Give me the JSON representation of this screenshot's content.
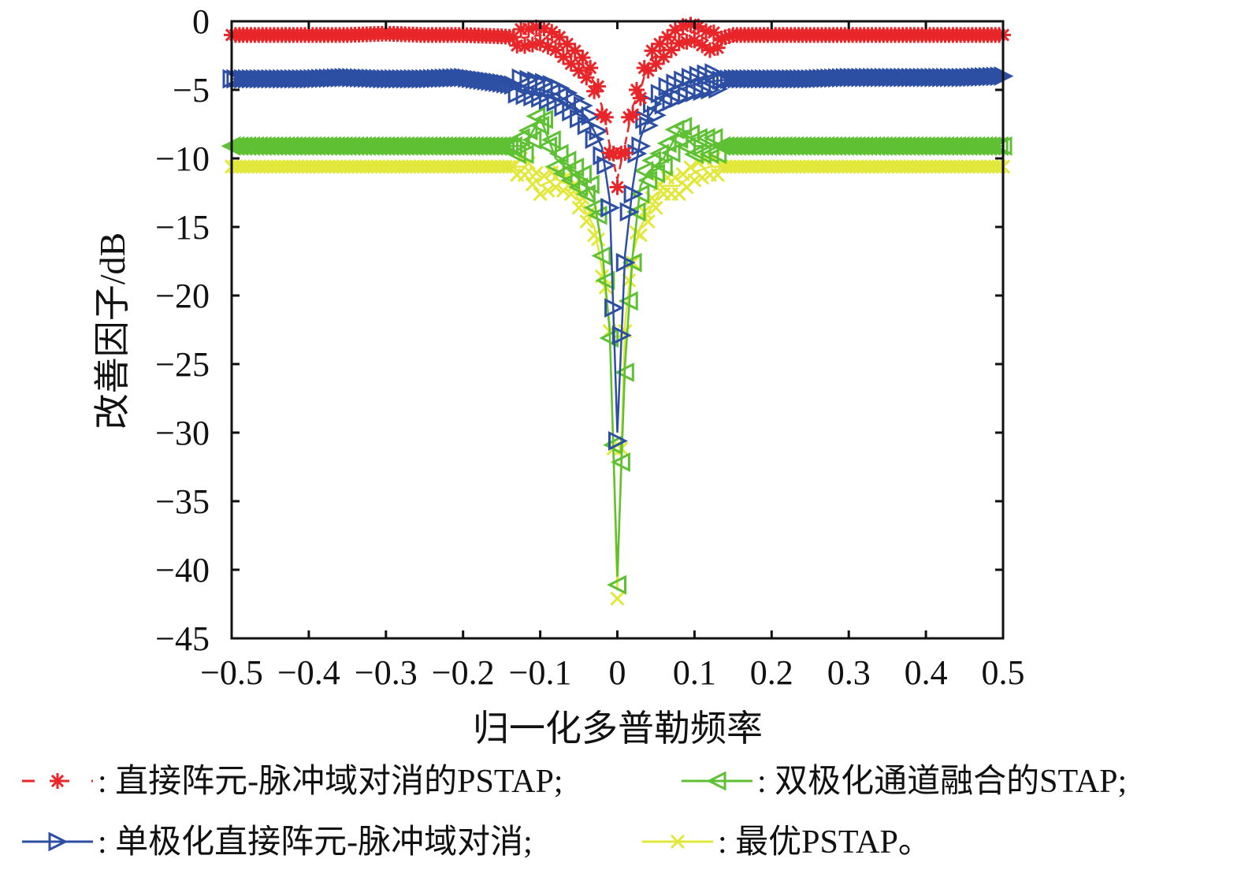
{
  "chart_data": {
    "type": "line",
    "title": "",
    "xlabel": "归一化多普勒频率",
    "ylabel": "改善因子/dB",
    "xlim": [
      -0.5,
      0.5
    ],
    "ylim": [
      -45,
      0
    ],
    "xticks": [
      -0.5,
      -0.4,
      -0.3,
      -0.2,
      -0.1,
      0,
      0.1,
      0.2,
      0.3,
      0.4,
      0.5
    ],
    "xtick_labels": [
      "−0.5",
      "−0.4",
      "−0.3",
      "−0.2",
      "−0.1",
      "0",
      "0.1",
      "0.2",
      "0.3",
      "0.4",
      "0.5"
    ],
    "yticks": [
      0,
      -5,
      -10,
      -15,
      -20,
      -25,
      -30,
      -35,
      -40,
      -45
    ],
    "ytick_labels": [
      "0",
      "−5",
      "−10",
      "−15",
      "−20",
      "−25",
      "−30",
      "−35",
      "−40",
      "−45"
    ],
    "grid": false,
    "legend_placement": "bottom",
    "x": [
      -0.5,
      -0.45,
      -0.4,
      -0.35,
      -0.3,
      -0.25,
      -0.2,
      -0.15,
      -0.12,
      -0.1,
      -0.08,
      -0.06,
      -0.04,
      -0.03,
      -0.02,
      -0.01,
      0,
      0.01,
      0.02,
      0.03,
      0.04,
      0.06,
      0.08,
      0.1,
      0.12,
      0.15,
      0.2,
      0.25,
      0.3,
      0.35,
      0.4,
      0.45,
      0.5
    ],
    "series": [
      {
        "name": "直接阵元-脉冲域对消的PSTAP;",
        "color": "#e8262a",
        "marker": "asterisk",
        "dash": true,
        "values": [
          -1.0,
          -1.0,
          -1.0,
          -1.0,
          -0.9,
          -1.0,
          -1.0,
          -1.1,
          -1.2,
          -1.0,
          -1.5,
          -2.5,
          -3.5,
          -4.5,
          -6.2,
          -9.0,
          -11.5,
          -9.0,
          -6.2,
          -5.0,
          -3.0,
          -2.0,
          -1.0,
          -0.8,
          -1.5,
          -1.0,
          -1.0,
          -1.0,
          -1.0,
          -1.0,
          -1.0,
          -1.0,
          -1.0
        ]
      },
      {
        "name": "单极化直接阵元-脉冲域对消;",
        "color": "#2d4fa3",
        "marker": "triangle-right",
        "dash": false,
        "values": [
          -4.2,
          -4.2,
          -4.2,
          -4.1,
          -4.2,
          -4.2,
          -4.1,
          -4.5,
          -4.8,
          -5.0,
          -5.3,
          -6.0,
          -7.0,
          -8.0,
          -9.2,
          -13.0,
          -30.0,
          -17.0,
          -12.0,
          -8.5,
          -7.0,
          -5.5,
          -5.0,
          -4.6,
          -4.4,
          -4.2,
          -4.2,
          -4.2,
          -4.1,
          -4.1,
          -4.1,
          -4.1,
          -4.0
        ]
      },
      {
        "name": "双极化通道融合的STAP;",
        "color": "#5ec033",
        "marker": "triangle-left",
        "dash": false,
        "values": [
          -9.1,
          -9.1,
          -9.1,
          -9.1,
          -9.1,
          -9.1,
          -9.1,
          -9.1,
          -9.1,
          -7.0,
          -10.0,
          -11.0,
          -12.0,
          -13.0,
          -16.5,
          -22.5,
          -40.5,
          -25.0,
          -17.0,
          -12.0,
          -11.0,
          -10.0,
          -8.0,
          -9.1,
          -9.1,
          -9.1,
          -9.1,
          -9.1,
          -9.1,
          -9.1,
          -9.1,
          -9.1,
          -9.1
        ]
      },
      {
        "name": "最优PSTAP。",
        "color": "#e2e83a",
        "marker": "x",
        "dash": false,
        "values": [
          -10.6,
          -10.6,
          -10.6,
          -10.6,
          -10.6,
          -10.6,
          -10.6,
          -10.6,
          -10.6,
          -12.0,
          -11.5,
          -12.0,
          -14.0,
          -15.0,
          -18.0,
          -22.0,
          -41.5,
          -22.0,
          -17.0,
          -15.0,
          -14.0,
          -12.0,
          -12.0,
          -11.0,
          -10.6,
          -10.6,
          -10.6,
          -10.6,
          -10.6,
          -10.6,
          -10.6,
          -10.6,
          -10.6
        ]
      }
    ]
  }
}
